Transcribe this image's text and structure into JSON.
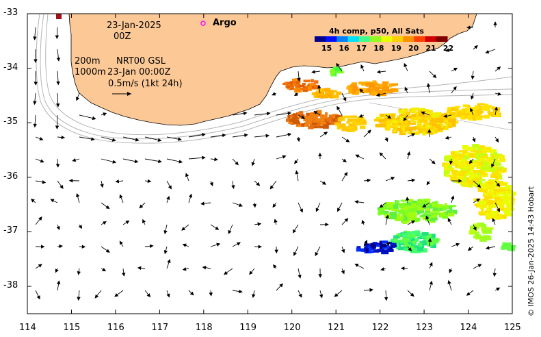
{
  "map": {
    "date": "23-Jan-2025",
    "cycle": "00Z",
    "legend_depth_200": "200m",
    "legend_depth_1000": "1000m",
    "product": "NRT00 GSL",
    "product_time": "23-Jan 00:00Z",
    "scale_label": "0.5m/s (1kt 24h)",
    "argo_label": "Argo",
    "credit": "© IMOS 26-Jan-2025 14:43 Hobart",
    "lon_ticks": [
      "114",
      "115",
      "116",
      "117",
      "118",
      "119",
      "120",
      "121",
      "122",
      "123",
      "124",
      "125"
    ],
    "lat_ticks": [
      "-33",
      "-34",
      "-35",
      "-36",
      "-37",
      "-38"
    ],
    "colors": {
      "land": "#fbc896",
      "argo_marker": "#ff00ff",
      "bathymetry": "#b5b5b5"
    }
  },
  "colorbar": {
    "title": "4h comp, p50, All Sats",
    "ticks": [
      "15",
      "16",
      "17",
      "18",
      "19",
      "20",
      "21",
      "22"
    ],
    "colors": [
      "#00008f",
      "#0010ff",
      "#0080ff",
      "#00e0ff",
      "#40ff90",
      "#90ff20",
      "#e8ff00",
      "#ffd000",
      "#ff9000",
      "#ff4000",
      "#d00000",
      "#800000"
    ]
  }
}
